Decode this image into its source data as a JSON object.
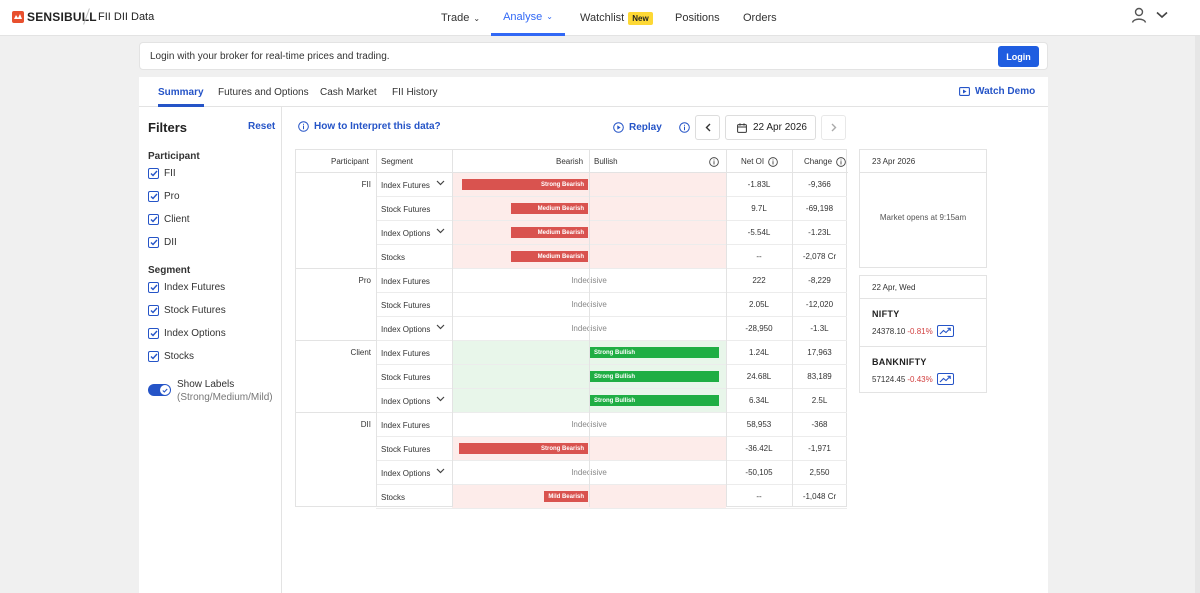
{
  "header": {
    "brand": "SENSIBULL",
    "page_title": "FII DII Data",
    "nav": [
      {
        "label": "Trade",
        "has_dropdown": true
      },
      {
        "label": "Analyse",
        "has_dropdown": true,
        "active": true
      },
      {
        "label": "Watchlist",
        "badge": "New"
      },
      {
        "label": "Positions"
      },
      {
        "label": "Orders"
      }
    ]
  },
  "banner": {
    "text": "Login with your broker for real-time prices and trading.",
    "login_label": "Login"
  },
  "tabs": [
    {
      "label": "Summary",
      "active": true
    },
    {
      "label": "Futures and Options"
    },
    {
      "label": "Cash Market"
    },
    {
      "label": "FII History"
    }
  ],
  "watch_demo": "Watch Demo",
  "filters": {
    "title": "Filters",
    "reset": "Reset",
    "participant_title": "Participant",
    "participants": [
      "FII",
      "Pro",
      "Client",
      "DII"
    ],
    "segment_title": "Segment",
    "segments": [
      "Index Futures",
      "Stock Futures",
      "Index Options",
      "Stocks"
    ],
    "toggle_label": "Show Labels",
    "toggle_sub": "(Strong/Medium/Mild)"
  },
  "toolbar": {
    "howto": "How to Interpret this data?",
    "replay": "Replay",
    "date": "22 Apr 2026"
  },
  "table": {
    "headers": {
      "participant": "Participant",
      "segment": "Segment",
      "bearish": "Bearish",
      "bullish": "Bullish",
      "net_oi": "Net OI",
      "change": "Change"
    },
    "groups": [
      "FII",
      "Pro",
      "Client",
      "DII"
    ],
    "rows": [
      {
        "seg": "Index Futures",
        "label": "Strong Bearish",
        "side": "bear",
        "strength": 0.95,
        "net_oi": "-1.83L",
        "change": "-9,366",
        "chev": true
      },
      {
        "seg": "Stock Futures",
        "label": "Medium Bearish",
        "side": "bear",
        "strength": 0.58,
        "net_oi": "9.7L",
        "change": "-69,198",
        "chev": false
      },
      {
        "seg": "Index Options",
        "label": "Medium Bearish",
        "side": "bear",
        "strength": 0.58,
        "net_oi": "-5.54L",
        "change": "-1.23L",
        "chev": true
      },
      {
        "seg": "Stocks",
        "label": "Medium Bearish",
        "side": "bear",
        "strength": 0.58,
        "net_oi": "--",
        "change": "-2,078 Cr",
        "chev": false
      },
      {
        "seg": "Index Futures",
        "label": "Indecisive",
        "side": "none",
        "strength": 0,
        "net_oi": "222",
        "change": "-8,229",
        "chev": false
      },
      {
        "seg": "Stock Futures",
        "label": "Indecisive",
        "side": "none",
        "strength": 0,
        "net_oi": "2.05L",
        "change": "-12,020",
        "chev": false
      },
      {
        "seg": "Index Options",
        "label": "Indecisive",
        "side": "none",
        "strength": 0,
        "net_oi": "-28,950",
        "change": "-1.3L",
        "chev": true
      },
      {
        "seg": "Index Futures",
        "label": "Strong Bullish",
        "side": "bull",
        "strength": 0.97,
        "net_oi": "1.24L",
        "change": "17,963",
        "chev": false
      },
      {
        "seg": "Stock Futures",
        "label": "Strong Bullish",
        "side": "bull",
        "strength": 0.97,
        "net_oi": "24.68L",
        "change": "83,189",
        "chev": false
      },
      {
        "seg": "Index Options",
        "label": "Strong Bullish",
        "side": "bull",
        "strength": 0.97,
        "net_oi": "6.34L",
        "change": "2.5L",
        "chev": true
      },
      {
        "seg": "Index Futures",
        "label": "Indecisive",
        "side": "none",
        "strength": 0,
        "net_oi": "58,953",
        "change": "-368",
        "chev": false
      },
      {
        "seg": "Stock Futures",
        "label": "Strong Bearish",
        "side": "bear",
        "strength": 0.97,
        "net_oi": "-36.42L",
        "change": "-1,971",
        "chev": false
      },
      {
        "seg": "Index Options",
        "label": "Indecisive",
        "side": "none",
        "strength": 0,
        "net_oi": "-50,105",
        "change": "2,550",
        "chev": true
      },
      {
        "seg": "Stocks",
        "label": "Mild Bearish",
        "side": "bear",
        "strength": 0.33,
        "net_oi": "--",
        "change": "-1,048 Cr",
        "chev": false
      }
    ]
  },
  "side_cards": {
    "next_date": "23 Apr 2026",
    "market_msg": "Market opens at 9:15am",
    "prev_date": "22 Apr, Wed",
    "indices": [
      {
        "name": "NIFTY",
        "value": "24378.10",
        "change": "-0.81%"
      },
      {
        "name": "BANKNIFTY",
        "value": "57124.45",
        "change": "-0.43%"
      }
    ]
  },
  "colors": {
    "accent": "#2554c7",
    "bearish": "#d9534f",
    "bullish": "#1fae44",
    "bear_bg": "#fdecea",
    "bull_bg": "#e8f6ea"
  }
}
